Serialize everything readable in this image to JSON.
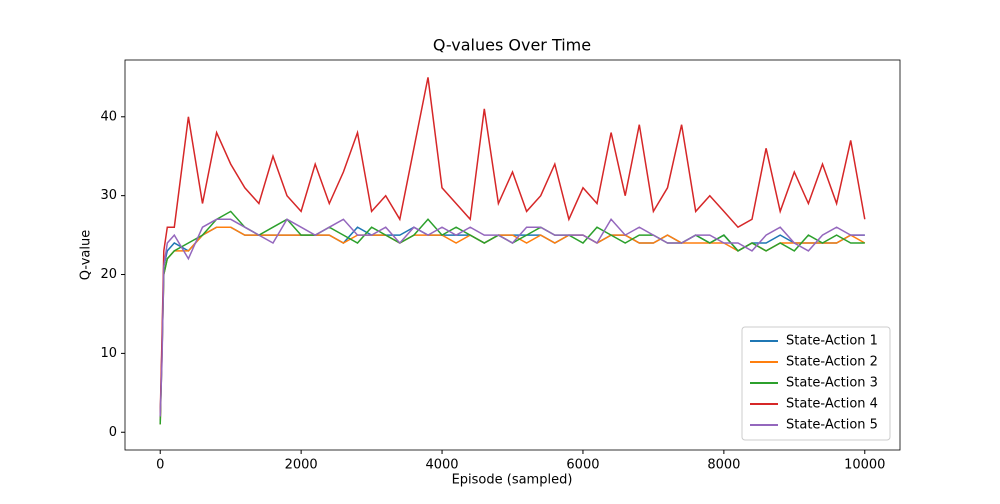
{
  "chart_data": {
    "type": "line",
    "title": "Q-values Over Time",
    "x_label": "Episode (sampled)",
    "y_label": "Q-value",
    "x": [
      0,
      25,
      50,
      100,
      200,
      400,
      600,
      800,
      1000,
      1200,
      1400,
      1600,
      1800,
      2000,
      2200,
      2400,
      2600,
      2800,
      3000,
      3200,
      3400,
      3600,
      3800,
      4000,
      4200,
      4400,
      4600,
      4800,
      5000,
      5200,
      5400,
      5600,
      5800,
      6000,
      6200,
      6400,
      6600,
      6800,
      7000,
      7200,
      7400,
      7600,
      7800,
      8000,
      8200,
      8400,
      8600,
      8800,
      9000,
      9200,
      9400,
      9600,
      9800,
      10000
    ],
    "series": [
      {
        "name": "State-Action 1",
        "color": "#1f77b4",
        "values": [
          1.5,
          11,
          21,
          23,
          24,
          23,
          25,
          26,
          26,
          25,
          25,
          25,
          25,
          25,
          25,
          25,
          24,
          26,
          25,
          25,
          25,
          26,
          25,
          25,
          25,
          25,
          24,
          25,
          25,
          25,
          25,
          24,
          25,
          25,
          24,
          25,
          25,
          24,
          24,
          25,
          24,
          25,
          24,
          25,
          23,
          24,
          24,
          25,
          24,
          24,
          24,
          24,
          25,
          25
        ]
      },
      {
        "name": "State-Action 2",
        "color": "#ff7f0e",
        "values": [
          1,
          10,
          20,
          22,
          23,
          23,
          25,
          26,
          26,
          25,
          25,
          25,
          25,
          25,
          25,
          25,
          24,
          25,
          25,
          25,
          24,
          25,
          25,
          25,
          24,
          25,
          24,
          25,
          25,
          24,
          25,
          24,
          25,
          25,
          24,
          25,
          25,
          24,
          24,
          25,
          24,
          24,
          24,
          24,
          23,
          24,
          23,
          24,
          24,
          24,
          24,
          24,
          25,
          24
        ]
      },
      {
        "name": "State-Action 3",
        "color": "#2ca02c",
        "values": [
          1,
          10,
          20,
          22,
          23,
          24,
          25,
          27,
          28,
          26,
          25,
          26,
          27,
          25,
          25,
          26,
          25,
          24,
          26,
          25,
          24,
          25,
          27,
          25,
          26,
          25,
          24,
          25,
          24,
          25,
          26,
          25,
          25,
          24,
          26,
          25,
          24,
          25,
          25,
          24,
          24,
          25,
          24,
          25,
          23,
          24,
          23,
          24,
          23,
          25,
          24,
          25,
          24,
          24
        ]
      },
      {
        "name": "State-Action 4",
        "color": "#d62728",
        "values": [
          2,
          12,
          23,
          26,
          26,
          40,
          29,
          38,
          34,
          31,
          29,
          35,
          30,
          28,
          34,
          29,
          33,
          38,
          28,
          30,
          27,
          36,
          45,
          31,
          29,
          27,
          41,
          29,
          33,
          28,
          30,
          34,
          27,
          31,
          29,
          38,
          30,
          39,
          28,
          31,
          39,
          28,
          30,
          28,
          26,
          27,
          36,
          28,
          33,
          29,
          34,
          29,
          37,
          27
        ]
      },
      {
        "name": "State-Action 5",
        "color": "#9467bd",
        "values": [
          2,
          9,
          21,
          24,
          25,
          22,
          26,
          27,
          27,
          26,
          25,
          24,
          27,
          26,
          25,
          26,
          27,
          25,
          25,
          26,
          24,
          26,
          25,
          26,
          25,
          26,
          25,
          25,
          24,
          26,
          26,
          25,
          25,
          25,
          24,
          27,
          25,
          26,
          25,
          24,
          24,
          25,
          25,
          24,
          24,
          23,
          25,
          26,
          24,
          23,
          25,
          26,
          25,
          25
        ]
      }
    ],
    "xlim": [
      -500,
      10500
    ],
    "ylim": [
      -2.25,
      47.2
    ],
    "xticks": [
      0,
      2000,
      4000,
      6000,
      8000,
      10000
    ],
    "yticks": [
      0,
      10,
      20,
      30,
      40
    ],
    "legend": "lower right"
  }
}
